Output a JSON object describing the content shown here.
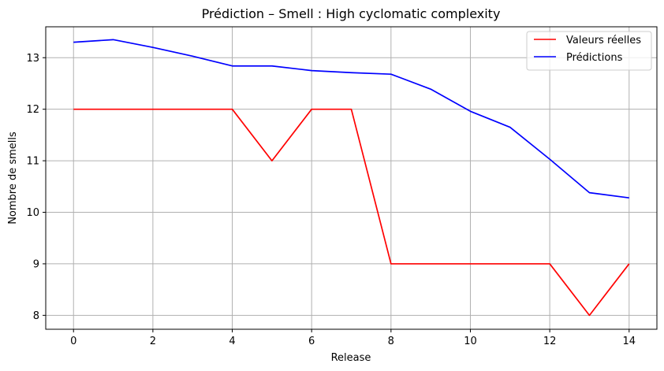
{
  "chart_data": {
    "type": "line",
    "title": "Prédiction – Smell : High cyclomatic complexity",
    "xlabel": "Release",
    "ylabel": "Nombre de smells",
    "x": [
      0,
      1,
      2,
      3,
      4,
      5,
      6,
      7,
      8,
      9,
      10,
      11,
      12,
      13,
      14
    ],
    "xlim": [
      -0.7,
      14.7
    ],
    "ylim": [
      7.73,
      13.6
    ],
    "xticks": [
      0,
      2,
      4,
      6,
      8,
      10,
      12,
      14
    ],
    "yticks": [
      8,
      9,
      10,
      11,
      12,
      13
    ],
    "xtick_labels": [
      "0",
      "2",
      "4",
      "6",
      "8",
      "10",
      "12",
      "14"
    ],
    "ytick_labels": [
      "8",
      "9",
      "10",
      "11",
      "12",
      "13"
    ],
    "grid": true,
    "legend_position": "top-right",
    "series": [
      {
        "name": "Valeurs réelles",
        "color": "#ff0000",
        "values": [
          12,
          12,
          12,
          12,
          12,
          11,
          12,
          12,
          9,
          9,
          9,
          9,
          9,
          8,
          9
        ]
      },
      {
        "name": "Prédictions",
        "color": "#0000ff",
        "values": [
          13.3,
          13.35,
          13.2,
          13.03,
          12.84,
          12.84,
          12.75,
          12.71,
          12.68,
          12.39,
          11.96,
          11.65,
          11.03,
          10.38,
          10.28
        ]
      }
    ]
  }
}
